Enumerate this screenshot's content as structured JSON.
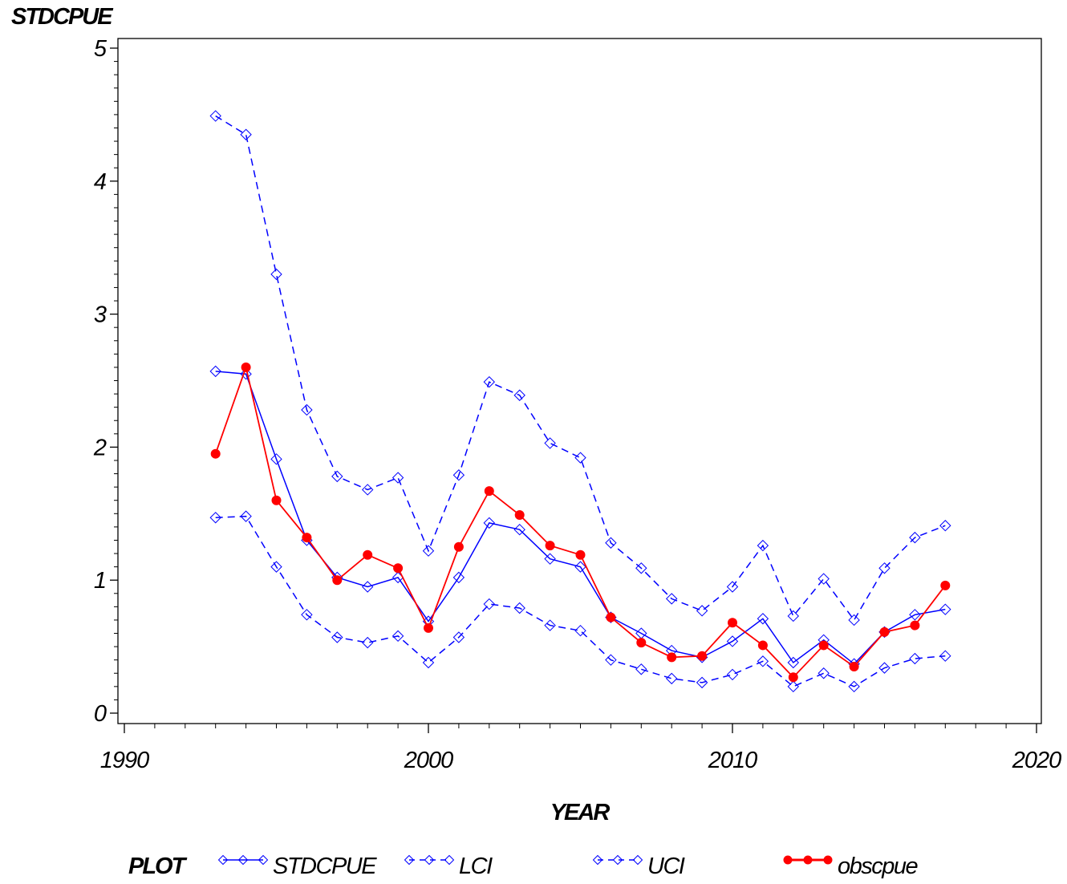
{
  "chart_data": {
    "type": "line",
    "title": "",
    "xlabel": "YEAR",
    "ylabel": "STDCPUE",
    "xlim": [
      1990,
      2020
    ],
    "ylim": [
      0,
      5
    ],
    "x_ticks": [
      1990,
      2000,
      2010,
      2020
    ],
    "y_ticks": [
      0,
      1,
      2,
      3,
      4,
      5
    ],
    "x_tick_labels": [
      "1990",
      "2000",
      "2010",
      "2020"
    ],
    "y_tick_labels": [
      "0",
      "1",
      "2",
      "3",
      "4",
      "5"
    ],
    "grid": false,
    "legend_position": "bottom",
    "legend_title": "PLOT",
    "x": [
      1993,
      1994,
      1995,
      1996,
      1997,
      1998,
      1999,
      2000,
      2001,
      2002,
      2003,
      2004,
      2005,
      2006,
      2007,
      2008,
      2009,
      2010,
      2011,
      2012,
      2013,
      2014,
      2015,
      2016,
      2017
    ],
    "series": [
      {
        "name": "STDCPUE",
        "color": "#0000ff",
        "line_style": "solid",
        "marker": "diamond",
        "values": [
          2.57,
          2.55,
          1.91,
          1.3,
          1.02,
          0.95,
          1.02,
          0.69,
          1.02,
          1.43,
          1.38,
          1.16,
          1.1,
          0.72,
          0.6,
          0.47,
          0.42,
          0.54,
          0.71,
          0.38,
          0.55,
          0.37,
          0.61,
          0.74,
          0.78
        ]
      },
      {
        "name": "LCI",
        "color": "#0000ff",
        "line_style": "dashed",
        "marker": "diamond",
        "values": [
          1.47,
          1.48,
          1.1,
          0.74,
          0.57,
          0.53,
          0.58,
          0.38,
          0.57,
          0.82,
          0.79,
          0.66,
          0.62,
          0.4,
          0.33,
          0.26,
          0.23,
          0.29,
          0.39,
          0.2,
          0.3,
          0.2,
          0.34,
          0.41,
          0.43
        ]
      },
      {
        "name": "UCI",
        "color": "#0000ff",
        "line_style": "dashed",
        "marker": "diamond",
        "values": [
          4.49,
          4.35,
          3.3,
          2.28,
          1.78,
          1.68,
          1.77,
          1.22,
          1.79,
          2.49,
          2.39,
          2.03,
          1.92,
          1.28,
          1.09,
          0.86,
          0.77,
          0.95,
          1.26,
          0.73,
          1.01,
          0.7,
          1.09,
          1.32,
          1.41
        ]
      },
      {
        "name": "obscpue",
        "color": "#ff0000",
        "line_style": "solid",
        "marker": "filled-circle",
        "values": [
          1.95,
          2.6,
          1.6,
          1.32,
          1.0,
          1.19,
          1.09,
          0.64,
          1.25,
          1.67,
          1.49,
          1.26,
          1.19,
          0.72,
          0.53,
          0.42,
          0.43,
          0.68,
          0.51,
          0.27,
          0.51,
          0.35,
          0.61,
          0.66,
          0.96
        ]
      }
    ]
  }
}
